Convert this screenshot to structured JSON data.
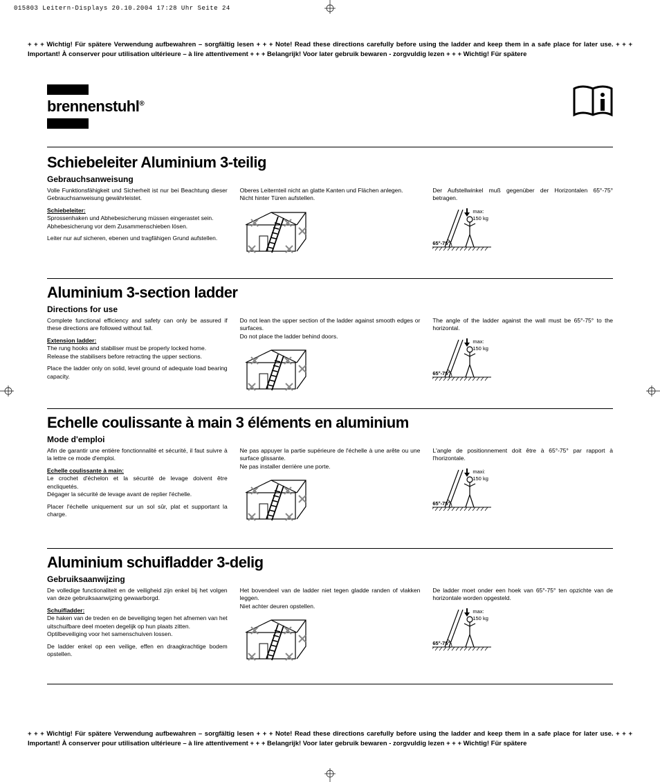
{
  "print_header": "015803 Leitern-Displays  20.10.2004  17:28 Uhr  Seite 24",
  "banner_text": "+ + + Wichtig! Für spätere Verwendung aufbewahren – sorgfältig lesen + + + Note! Read these directions carefully before using the ladder and keep them in a safe place for later use. + + + Important! À conserver pour utilisation ultérieure – à lire attentivement + + + Belangrijk! Voor later gebruik bewaren - zorgvuldig lezen + + + Wichtig! Für spätere",
  "logo": {
    "text": "brennenstuhl",
    "reg": "®"
  },
  "angle_label": "65°-75°",
  "max_label": "max:",
  "max_weight": "150 kg",
  "max_label_fr": "maxi:",
  "sections": [
    {
      "title": "Schiebeleiter Aluminium 3-teilig",
      "subtitle": "Gebrauchsanweisung",
      "col1_p1": "Volle Funktionsfähigkeit und Sicherheit ist nur bei Beachtung dieser Gebrauchsanweisung gewähr­leistet.",
      "col1_strong": "Schiebeleiter:",
      "col1_p2": "Sprossenhaken und Abhebesicherung müssen eingerastet sein.",
      "col1_p3": "Abhebesicherung vor dem Zusammenschieben lösen.",
      "col1_p4": "Leiter nur auf sicheren, ebenen und tragfähigen Grund aufstellen.",
      "col2_p1": "Oberes Leiternteil nicht an glatte Kanten und Flächen anlegen.",
      "col2_p2": "Nicht hinter Türen aufstellen.",
      "col3_p1": "Der Aufstellwinkel muß gegenüber der Horizontalen 65°-75° betragen."
    },
    {
      "title": "Aluminium 3-section ladder",
      "subtitle": "Directions for use",
      "col1_p1": "Complete functional efficiency and safety can only be assured if these directions are followed without fail.",
      "col1_strong": "Extension ladder:",
      "col1_p2": "The rung hooks and stabiliser must be properly locked home.",
      "col1_p3": "Release the stabilisers before retracting the upper sections.",
      "col1_p4": "Place the ladder only on solid, level ground of adequate load bearing capacity.",
      "col2_p1": "Do not lean the upper section of the ladder against smooth edges or surfaces.",
      "col2_p2": "Do not place the ladder behind doors.",
      "col3_p1": "The angle of the ladder against the wall must be 65°-75° to the horizontal."
    },
    {
      "title": "Echelle coulissante à main 3 éléments en aluminium",
      "subtitle": "Mode d'emploi",
      "col1_p1": "Afin de garantir une entière fonctionnalité et sécurité, il faut suivre à la lettre ce mode d'emploi.",
      "col1_strong": "Echelle coulissante à main:",
      "col1_p2": "Le crochet d'échelon et la sécurité de levage doivent être encliquetés.",
      "col1_p3": "Dégager la sécurité de levage avant de replier l'échelle.",
      "col1_p4": "Placer l'échelle uniquement sur un sol sûr, plat et supportant la charge.",
      "col2_p1": "Ne pas appuyer la partie supérieure de l'échelle à une arête ou une surface glissante.",
      "col2_p2": "Ne pas installer derrière une porte.",
      "col3_p1": "L'angle de positionnement doit être à 65°-75° par rapport à l'horizontale."
    },
    {
      "title": "Aluminium schuifladder 3-delig",
      "subtitle": "Gebruiksaanwijzing",
      "col1_p1": "De volledige functionaliteit en de veiligheid zijn enkel bij het volgen van deze gebruiksaanwijzing gewaarborgd.",
      "col1_strong": "Schuifladder:",
      "col1_p2": "De haken van de treden en de beveiliging tegen het afnemen van het uitschuifbare deel moeten degelijk op hun plaats zitten.",
      "col1_p3": "Optilbeveiliging voor het samenschuiven lossen.",
      "col1_p4": "De ladder enkel op een veilige, effen en draagkrach­tige bodem opstellen.",
      "col2_p1": "Het bovendeel van de ladder niet tegen gladde randen of vlakken leggen.",
      "col2_p2": "Niet achter deuren opstellen.",
      "col3_p1": "De ladder moet onder een hoek van 65°-75° ten opzichte van de horizontale worden opgesteld."
    }
  ],
  "layout": {
    "section_tops": [
      222,
      410,
      598,
      800
    ],
    "hr_positions": [
      212,
      402,
      590,
      792,
      988
    ]
  },
  "colors": {
    "text": "#000000",
    "bg": "#ffffff"
  }
}
